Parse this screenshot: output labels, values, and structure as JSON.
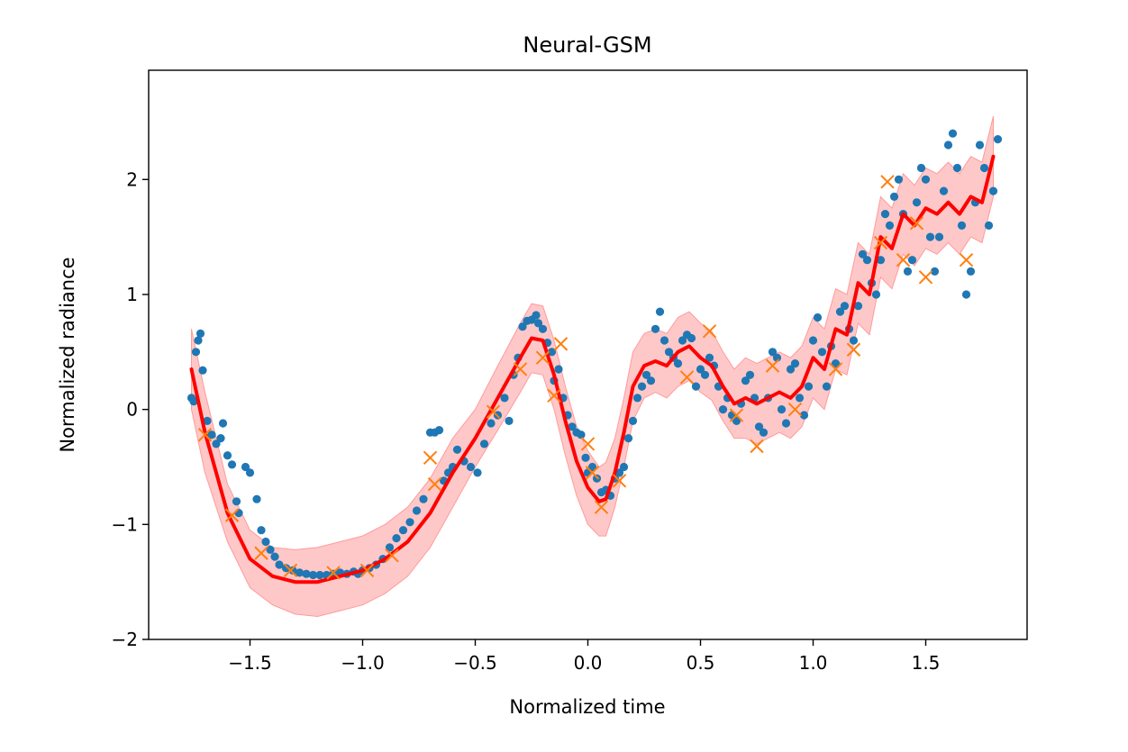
{
  "chart_data": {
    "type": "scatter",
    "title": "Neural-GSM",
    "xlabel": "Normalized time",
    "ylabel": "Normalized radiance",
    "xlim": [
      -1.95,
      1.95
    ],
    "ylim": [
      -2.0,
      2.95
    ],
    "x_ticks": [
      -1.5,
      -1.0,
      -0.5,
      0.0,
      0.5,
      1.0,
      1.5
    ],
    "x_tick_labels": [
      "−1.5",
      "−1.0",
      "−0.5",
      "0.0",
      "0.5",
      "1.0",
      "1.5"
    ],
    "y_ticks": [
      -2,
      -1,
      0,
      1,
      2
    ],
    "y_tick_labels": [
      "−2",
      "−1",
      "0",
      "1",
      "2"
    ],
    "grid": false,
    "colors": {
      "training_points": "#1f77b4",
      "test_points": "#ff7f0e",
      "mean": "#ff0000",
      "band": "#ff9a9a"
    },
    "series": [
      {
        "kind": "training-points",
        "marker": "circle",
        "points": [
          [
            -1.76,
            0.1
          ],
          [
            -1.75,
            0.07
          ],
          [
            -1.74,
            0.5
          ],
          [
            -1.73,
            0.6
          ],
          [
            -1.72,
            0.66
          ],
          [
            -1.71,
            0.34
          ],
          [
            -1.69,
            -0.1
          ],
          [
            -1.67,
            -0.22
          ],
          [
            -1.65,
            -0.3
          ],
          [
            -1.63,
            -0.25
          ],
          [
            -1.62,
            -0.12
          ],
          [
            -1.6,
            -0.4
          ],
          [
            -1.58,
            -0.48
          ],
          [
            -1.56,
            -0.8
          ],
          [
            -1.55,
            -0.9
          ],
          [
            -1.52,
            -0.5
          ],
          [
            -1.5,
            -0.55
          ],
          [
            -1.47,
            -0.78
          ],
          [
            -1.45,
            -1.05
          ],
          [
            -1.43,
            -1.15
          ],
          [
            -1.41,
            -1.22
          ],
          [
            -1.39,
            -1.28
          ],
          [
            -1.37,
            -1.35
          ],
          [
            -1.34,
            -1.38
          ],
          [
            -1.31,
            -1.4
          ],
          [
            -1.28,
            -1.42
          ],
          [
            -1.25,
            -1.43
          ],
          [
            -1.22,
            -1.44
          ],
          [
            -1.19,
            -1.44
          ],
          [
            -1.16,
            -1.44
          ],
          [
            -1.13,
            -1.43
          ],
          [
            -1.1,
            -1.42
          ],
          [
            -1.07,
            -1.43
          ],
          [
            -1.04,
            -1.41
          ],
          [
            -1.02,
            -1.43
          ],
          [
            -1.0,
            -1.4
          ],
          [
            -0.97,
            -1.38
          ],
          [
            -0.94,
            -1.35
          ],
          [
            -0.91,
            -1.3
          ],
          [
            -0.88,
            -1.2
          ],
          [
            -0.85,
            -1.12
          ],
          [
            -0.82,
            -1.05
          ],
          [
            -0.79,
            -0.98
          ],
          [
            -0.76,
            -0.88
          ],
          [
            -0.73,
            -0.78
          ],
          [
            -0.7,
            -0.2
          ],
          [
            -0.68,
            -0.2
          ],
          [
            -0.66,
            -0.18
          ],
          [
            -0.64,
            -0.62
          ],
          [
            -0.62,
            -0.55
          ],
          [
            -0.6,
            -0.5
          ],
          [
            -0.58,
            -0.35
          ],
          [
            -0.55,
            -0.45
          ],
          [
            -0.52,
            -0.5
          ],
          [
            -0.49,
            -0.55
          ],
          [
            -0.46,
            -0.3
          ],
          [
            -0.43,
            -0.12
          ],
          [
            -0.4,
            -0.05
          ],
          [
            -0.37,
            0.1
          ],
          [
            -0.35,
            -0.1
          ],
          [
            -0.33,
            0.3
          ],
          [
            -0.31,
            0.45
          ],
          [
            -0.29,
            0.72
          ],
          [
            -0.27,
            0.77
          ],
          [
            -0.25,
            0.78
          ],
          [
            -0.23,
            0.82
          ],
          [
            -0.22,
            0.75
          ],
          [
            -0.2,
            0.7
          ],
          [
            -0.18,
            0.58
          ],
          [
            -0.16,
            0.5
          ],
          [
            -0.15,
            0.25
          ],
          [
            -0.13,
            0.35
          ],
          [
            -0.11,
            0.1
          ],
          [
            -0.09,
            -0.05
          ],
          [
            -0.07,
            -0.15
          ],
          [
            -0.05,
            -0.2
          ],
          [
            -0.03,
            -0.22
          ],
          [
            -0.01,
            -0.42
          ],
          [
            0.0,
            -0.55
          ],
          [
            0.02,
            -0.5
          ],
          [
            0.04,
            -0.6
          ],
          [
            0.06,
            -0.72
          ],
          [
            0.08,
            -0.7
          ],
          [
            0.1,
            -0.75
          ],
          [
            0.12,
            -0.6
          ],
          [
            0.14,
            -0.55
          ],
          [
            0.16,
            -0.5
          ],
          [
            0.18,
            -0.25
          ],
          [
            0.2,
            -0.1
          ],
          [
            0.22,
            0.1
          ],
          [
            0.24,
            0.2
          ],
          [
            0.26,
            0.3
          ],
          [
            0.28,
            0.25
          ],
          [
            0.3,
            0.7
          ],
          [
            0.32,
            0.85
          ],
          [
            0.34,
            0.6
          ],
          [
            0.36,
            0.5
          ],
          [
            0.38,
            0.45
          ],
          [
            0.4,
            0.4
          ],
          [
            0.42,
            0.6
          ],
          [
            0.44,
            0.65
          ],
          [
            0.46,
            0.62
          ],
          [
            0.48,
            0.2
          ],
          [
            0.5,
            0.35
          ],
          [
            0.52,
            0.3
          ],
          [
            0.54,
            0.45
          ],
          [
            0.56,
            0.38
          ],
          [
            0.58,
            0.2
          ],
          [
            0.6,
            0.0
          ],
          [
            0.62,
            0.1
          ],
          [
            0.64,
            -0.05
          ],
          [
            0.66,
            -0.1
          ],
          [
            0.68,
            0.05
          ],
          [
            0.7,
            0.25
          ],
          [
            0.72,
            0.3
          ],
          [
            0.74,
            0.1
          ],
          [
            0.76,
            -0.15
          ],
          [
            0.78,
            -0.2
          ],
          [
            0.8,
            0.1
          ],
          [
            0.82,
            0.5
          ],
          [
            0.84,
            0.45
          ],
          [
            0.86,
            0.0
          ],
          [
            0.88,
            -0.12
          ],
          [
            0.9,
            0.35
          ],
          [
            0.92,
            0.4
          ],
          [
            0.94,
            0.1
          ],
          [
            0.96,
            -0.05
          ],
          [
            0.98,
            0.2
          ],
          [
            1.0,
            0.6
          ],
          [
            1.02,
            0.8
          ],
          [
            1.04,
            0.5
          ],
          [
            1.06,
            0.2
          ],
          [
            1.08,
            0.55
          ],
          [
            1.1,
            0.4
          ],
          [
            1.12,
            0.85
          ],
          [
            1.14,
            0.9
          ],
          [
            1.16,
            0.7
          ],
          [
            1.18,
            0.6
          ],
          [
            1.2,
            0.9
          ],
          [
            1.22,
            1.35
          ],
          [
            1.24,
            1.3
          ],
          [
            1.26,
            1.1
          ],
          [
            1.28,
            1.0
          ],
          [
            1.3,
            1.3
          ],
          [
            1.32,
            1.7
          ],
          [
            1.34,
            1.6
          ],
          [
            1.36,
            1.85
          ],
          [
            1.38,
            2.0
          ],
          [
            1.4,
            1.7
          ],
          [
            1.42,
            1.2
          ],
          [
            1.44,
            1.3
          ],
          [
            1.46,
            1.8
          ],
          [
            1.48,
            2.1
          ],
          [
            1.5,
            2.0
          ],
          [
            1.52,
            1.5
          ],
          [
            1.54,
            1.2
          ],
          [
            1.56,
            1.5
          ],
          [
            1.58,
            1.9
          ],
          [
            1.6,
            2.3
          ],
          [
            1.62,
            2.4
          ],
          [
            1.64,
            2.1
          ],
          [
            1.66,
            1.6
          ],
          [
            1.68,
            1.0
          ],
          [
            1.7,
            1.2
          ],
          [
            1.72,
            1.8
          ],
          [
            1.74,
            2.3
          ],
          [
            1.76,
            2.1
          ],
          [
            1.78,
            1.6
          ],
          [
            1.8,
            1.9
          ],
          [
            1.82,
            2.35
          ]
        ]
      },
      {
        "kind": "test-points",
        "marker": "x",
        "points": [
          [
            -1.7,
            -0.22
          ],
          [
            -1.58,
            -0.92
          ],
          [
            -1.45,
            -1.25
          ],
          [
            -1.32,
            -1.4
          ],
          [
            -1.13,
            -1.42
          ],
          [
            -0.98,
            -1.4
          ],
          [
            -0.87,
            -1.27
          ],
          [
            -0.7,
            -0.42
          ],
          [
            -0.68,
            -0.65
          ],
          [
            -0.42,
            -0.02
          ],
          [
            -0.3,
            0.35
          ],
          [
            -0.2,
            0.45
          ],
          [
            -0.15,
            0.12
          ],
          [
            -0.12,
            0.57
          ],
          [
            0.0,
            -0.3
          ],
          [
            0.02,
            -0.55
          ],
          [
            0.06,
            -0.85
          ],
          [
            0.14,
            -0.62
          ],
          [
            0.44,
            0.28
          ],
          [
            0.54,
            0.68
          ],
          [
            0.66,
            -0.05
          ],
          [
            0.75,
            -0.32
          ],
          [
            0.82,
            0.38
          ],
          [
            0.92,
            0.0
          ],
          [
            1.1,
            0.35
          ],
          [
            1.18,
            0.52
          ],
          [
            1.3,
            1.45
          ],
          [
            1.33,
            1.98
          ],
          [
            1.4,
            1.3
          ],
          [
            1.46,
            1.62
          ],
          [
            1.5,
            1.15
          ],
          [
            1.68,
            1.3
          ]
        ]
      },
      {
        "kind": "mean-with-band",
        "x": [
          -1.76,
          -1.7,
          -1.6,
          -1.5,
          -1.4,
          -1.3,
          -1.2,
          -1.1,
          -1.0,
          -0.9,
          -0.8,
          -0.7,
          -0.6,
          -0.5,
          -0.4,
          -0.3,
          -0.25,
          -0.2,
          -0.15,
          -0.1,
          -0.05,
          0.0,
          0.05,
          0.08,
          0.12,
          0.16,
          0.2,
          0.25,
          0.3,
          0.35,
          0.4,
          0.45,
          0.5,
          0.55,
          0.6,
          0.65,
          0.7,
          0.75,
          0.8,
          0.85,
          0.9,
          0.95,
          1.0,
          1.05,
          1.1,
          1.15,
          1.2,
          1.25,
          1.3,
          1.35,
          1.4,
          1.45,
          1.5,
          1.55,
          1.6,
          1.65,
          1.7,
          1.75,
          1.8
        ],
        "mean": [
          0.35,
          -0.2,
          -0.9,
          -1.3,
          -1.45,
          -1.5,
          -1.5,
          -1.45,
          -1.4,
          -1.3,
          -1.15,
          -0.9,
          -0.55,
          -0.25,
          0.1,
          0.45,
          0.62,
          0.6,
          0.3,
          -0.1,
          -0.45,
          -0.68,
          -0.8,
          -0.78,
          -0.55,
          -0.2,
          0.2,
          0.38,
          0.42,
          0.38,
          0.5,
          0.55,
          0.45,
          0.38,
          0.2,
          0.05,
          0.1,
          0.05,
          0.1,
          0.15,
          0.1,
          0.2,
          0.45,
          0.35,
          0.7,
          0.65,
          1.1,
          1.0,
          1.5,
          1.4,
          1.7,
          1.6,
          1.75,
          1.7,
          1.8,
          1.7,
          1.85,
          1.8,
          2.2
        ],
        "lower": [
          0.0,
          -0.55,
          -1.15,
          -1.55,
          -1.7,
          -1.78,
          -1.8,
          -1.75,
          -1.7,
          -1.6,
          -1.45,
          -1.2,
          -0.85,
          -0.5,
          -0.18,
          0.15,
          0.32,
          0.3,
          0.0,
          -0.4,
          -0.75,
          -1.0,
          -1.1,
          -1.1,
          -0.85,
          -0.5,
          -0.1,
          0.1,
          0.15,
          0.1,
          0.2,
          0.25,
          0.15,
          0.08,
          -0.1,
          -0.25,
          -0.25,
          -0.3,
          -0.25,
          -0.2,
          -0.25,
          -0.15,
          0.1,
          0.0,
          0.35,
          0.3,
          0.75,
          0.65,
          1.15,
          1.05,
          1.35,
          1.25,
          1.4,
          1.35,
          1.45,
          1.35,
          1.5,
          1.45,
          1.85
        ],
        "upper": [
          0.7,
          0.15,
          -0.65,
          -1.05,
          -1.2,
          -1.22,
          -1.2,
          -1.15,
          -1.1,
          -1.0,
          -0.85,
          -0.6,
          -0.25,
          0.0,
          0.38,
          0.75,
          0.92,
          0.9,
          0.6,
          0.2,
          -0.15,
          -0.36,
          -0.5,
          -0.46,
          -0.25,
          0.1,
          0.5,
          0.66,
          0.7,
          0.66,
          0.8,
          0.85,
          0.75,
          0.68,
          0.5,
          0.35,
          0.45,
          0.4,
          0.45,
          0.5,
          0.45,
          0.55,
          0.8,
          0.7,
          1.05,
          1.0,
          1.45,
          1.35,
          1.85,
          1.75,
          2.05,
          1.95,
          2.1,
          2.05,
          2.15,
          2.05,
          2.2,
          2.15,
          2.55
        ]
      }
    ]
  }
}
